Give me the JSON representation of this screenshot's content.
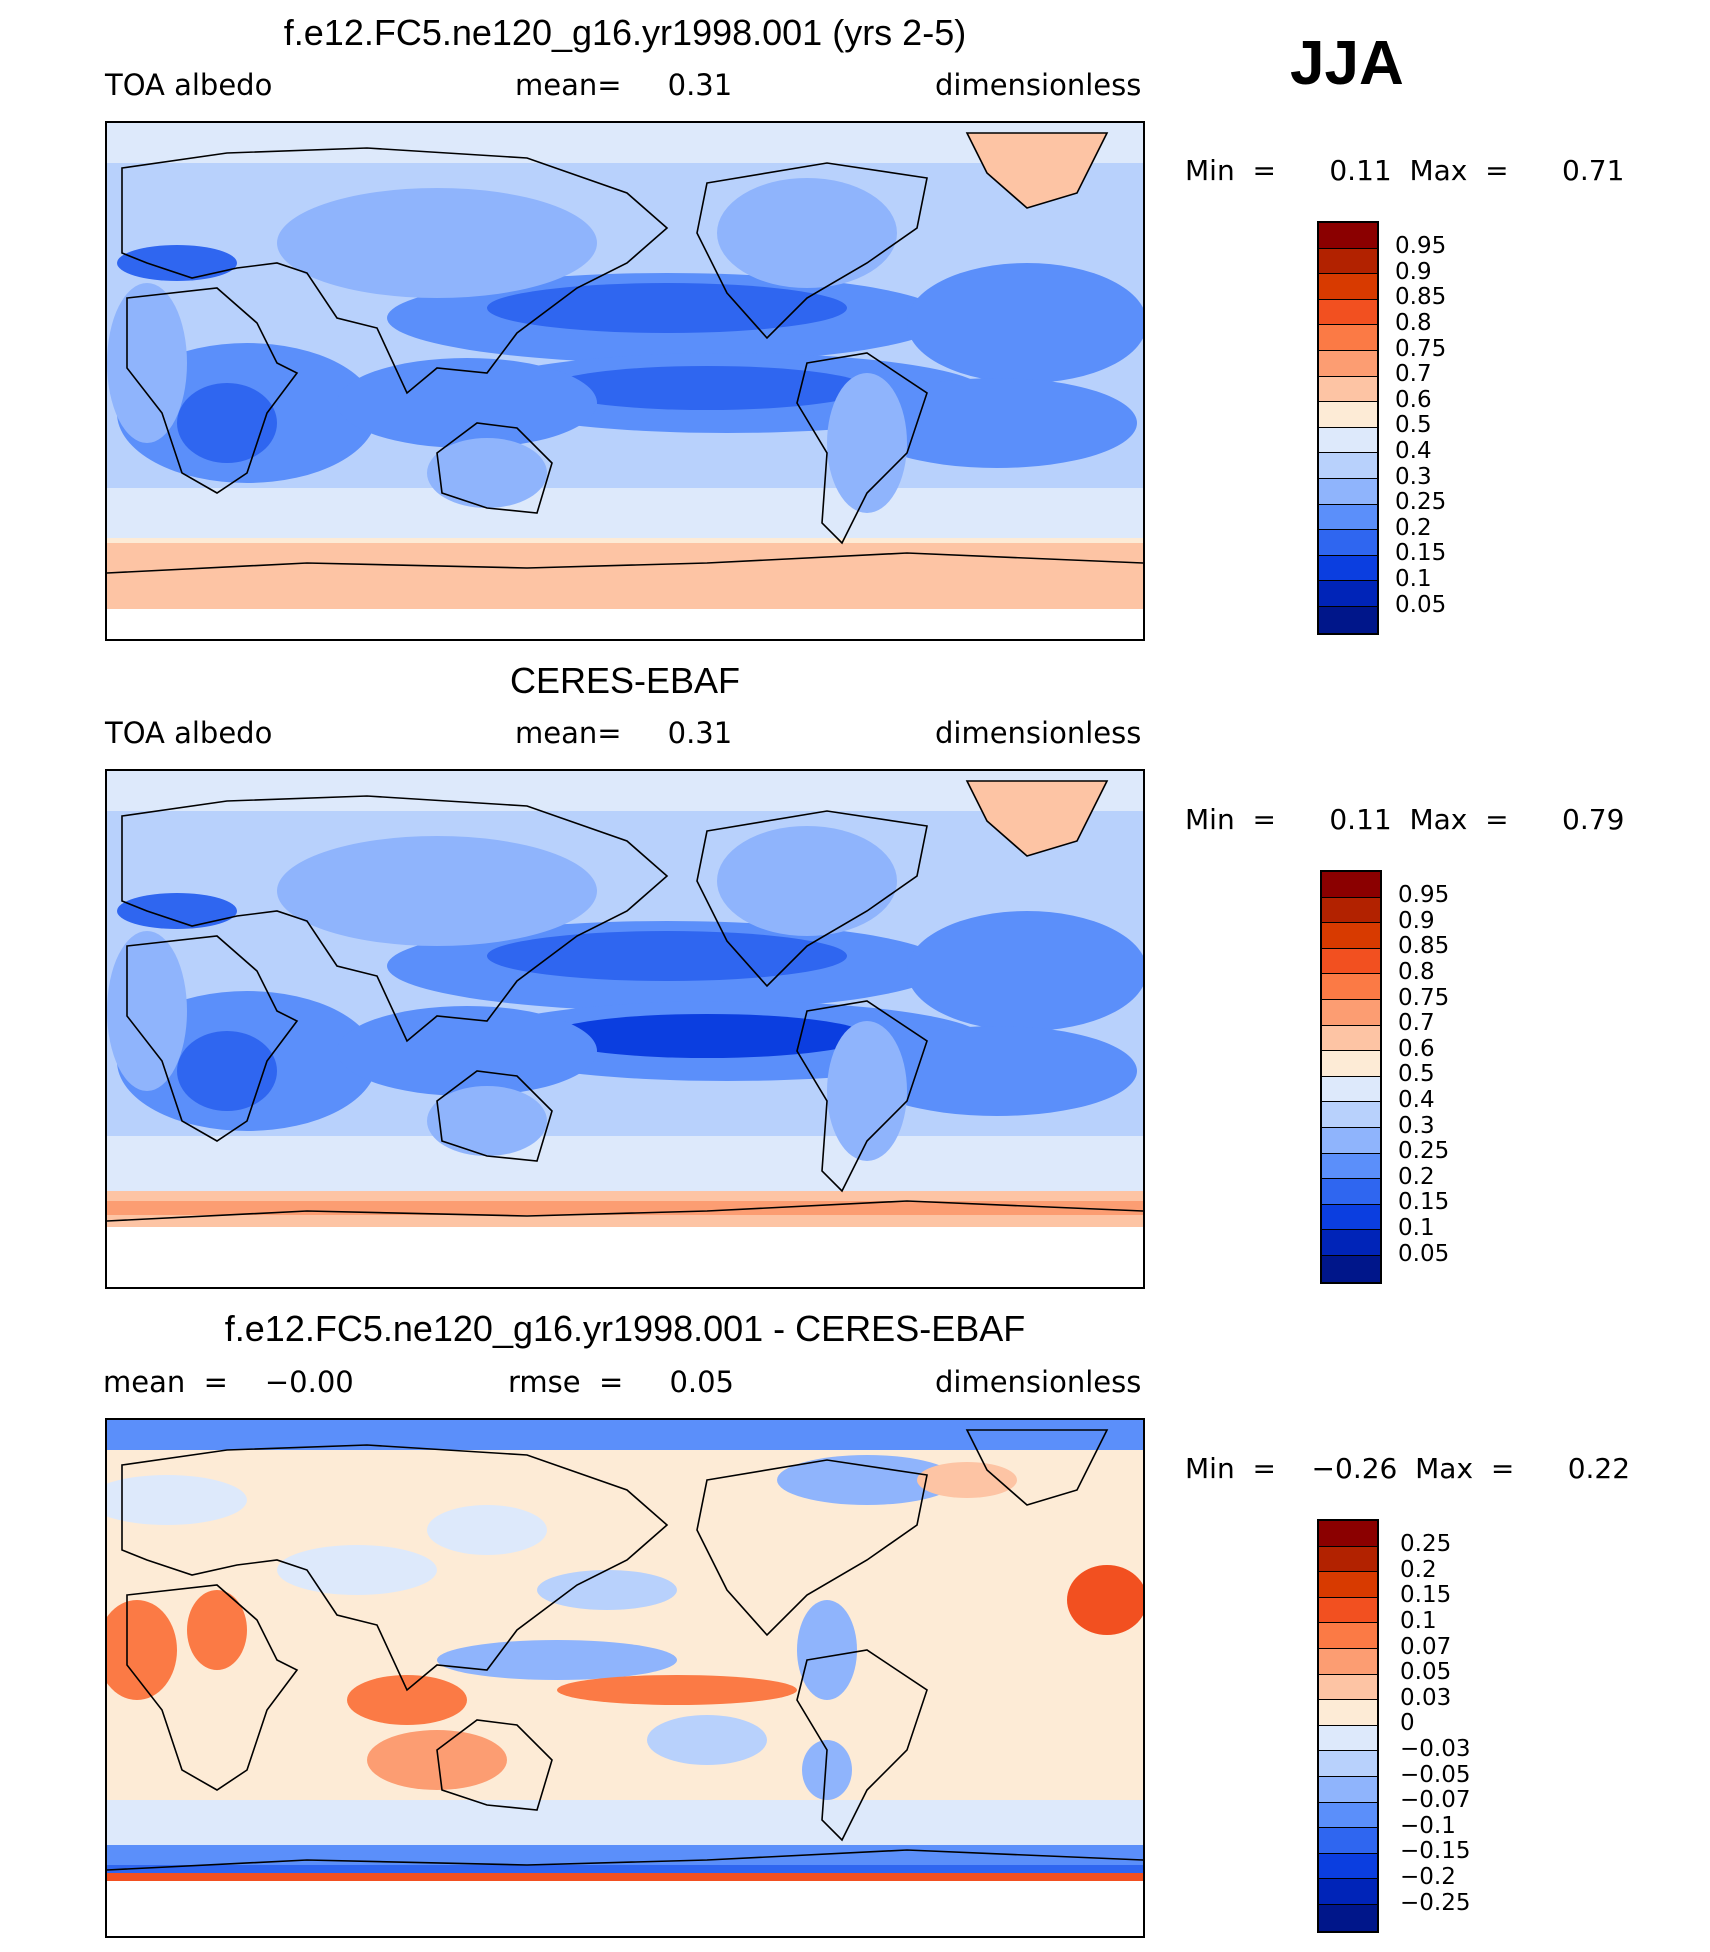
{
  "season": "JJA",
  "panels": [
    {
      "id": "model",
      "title": "f.e12.FC5.ne120_g16.yr1998.001 (yrs 2-5)",
      "left_label": "TOA  albedo",
      "center_label": "mean=     0.31",
      "right_label": "dimensionless",
      "minmax": "Min  =      0.11  Max  =      0.71"
    },
    {
      "id": "obs",
      "title": "CERES-EBAF",
      "left_label": "TOA  albedo",
      "center_label": "mean=     0.31",
      "right_label": "dimensionless",
      "minmax": "Min  =      0.11  Max  =      0.79"
    },
    {
      "id": "diff",
      "title": "f.e12.FC5.ne120_g16.yr1998.001 - CERES-EBAF",
      "left_label": "mean  =    −0.00",
      "center_label": "rmse  =     0.05",
      "right_label": "dimensionless",
      "minmax": "Min  =    −0.26  Max  =      0.22"
    }
  ],
  "colorbars": {
    "abs": {
      "colors": [
        "#8b0000",
        "#b22200",
        "#d83a00",
        "#f25020",
        "#fb7a45",
        "#fc9d72",
        "#fdc4a4",
        "#fdebd6",
        "#dde9fb",
        "#b8d1fc",
        "#8fb4fc",
        "#5b8ffa",
        "#2f66f0",
        "#0b3ee0",
        "#0024b8",
        "#00168a"
      ],
      "labels": [
        "0.95",
        "0.9",
        "0.85",
        "0.8",
        "0.75",
        "0.7",
        "0.6",
        "0.5",
        "0.4",
        "0.3",
        "0.25",
        "0.2",
        "0.15",
        "0.1",
        "0.05"
      ]
    },
    "diff": {
      "colors": [
        "#8b0000",
        "#b22200",
        "#d83a00",
        "#f25020",
        "#fb7a45",
        "#fc9d72",
        "#fdc4a4",
        "#fdebd6",
        "#dde9fb",
        "#b8d1fc",
        "#8fb4fc",
        "#5b8ffa",
        "#2f66f0",
        "#0b3ee0",
        "#0024b8",
        "#00168a"
      ],
      "labels": [
        "0.25",
        "0.2",
        "0.15",
        "0.1",
        "0.07",
        "0.05",
        "0.03",
        "0",
        "−0.03",
        "−0.05",
        "−0.07",
        "−0.1",
        "−0.15",
        "−0.2",
        "−0.25"
      ]
    }
  }
}
